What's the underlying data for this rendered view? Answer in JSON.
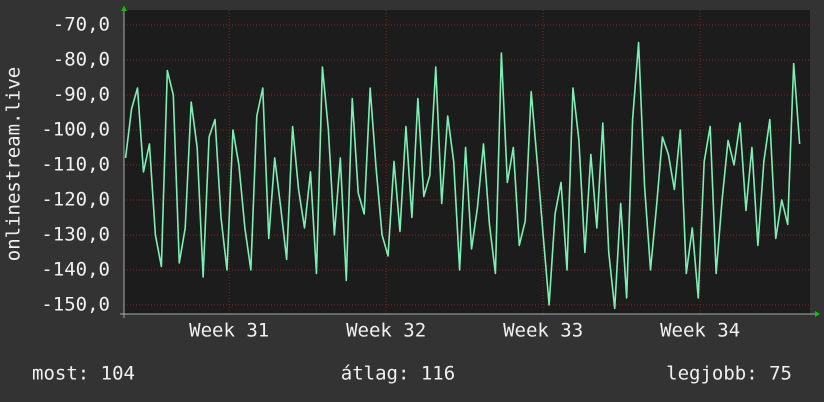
{
  "chart_data": {
    "type": "line",
    "y_label": "onlinestream.live",
    "x": [
      30.84,
      30.878,
      30.916,
      30.954,
      30.992,
      31.03,
      31.068,
      31.106,
      31.144,
      31.182,
      31.22,
      31.258,
      31.296,
      31.334,
      31.372,
      31.41,
      31.448,
      31.486,
      31.524,
      31.562,
      31.6,
      31.638,
      31.676,
      31.714,
      31.752,
      31.79,
      31.828,
      31.866,
      31.904,
      31.942,
      31.98,
      32.018,
      32.056,
      32.094,
      32.132,
      32.17,
      32.208,
      32.246,
      32.284,
      32.322,
      32.36,
      32.398,
      32.436,
      32.474,
      32.512,
      32.55,
      32.588,
      32.626,
      32.664,
      32.702,
      32.74,
      32.778,
      32.816,
      32.854,
      32.892,
      32.93,
      32.968,
      33.006,
      33.044,
      33.082,
      33.12,
      33.158,
      33.196,
      33.234,
      33.272,
      33.31,
      33.348,
      33.386,
      33.424,
      33.462,
      33.5,
      33.538,
      33.576,
      33.614,
      33.652,
      33.69,
      33.728,
      33.766,
      33.804,
      33.842,
      33.88,
      33.918,
      33.956,
      33.994,
      34.032,
      34.07,
      34.108,
      34.146,
      34.184,
      34.222,
      34.26,
      34.298,
      34.336,
      34.374,
      34.412,
      34.45,
      34.488,
      34.526,
      34.564,
      34.602,
      34.64,
      34.678,
      34.716,
      34.754,
      34.792,
      34.83,
      34.868,
      34.906,
      34.944,
      34.982,
      35.02,
      35.058,
      35.096,
      35.134
    ],
    "series": [
      {
        "name": "onlinestream.live",
        "color": "#7cf0b4",
        "values": [
          -108,
          -94,
          -88,
          -112,
          -104,
          -130,
          -139,
          -83,
          -90,
          -138,
          -128,
          -92,
          -105,
          -142,
          -102,
          -97,
          -125,
          -140,
          -100,
          -110,
          -128,
          -140,
          -96,
          -88,
          -131,
          -108,
          -122,
          -137,
          -99,
          -117,
          -128,
          -112,
          -141,
          -82,
          -100,
          -130,
          -108,
          -143,
          -91,
          -118,
          -124,
          -88,
          -111,
          -130,
          -136,
          -109,
          -129,
          -99,
          -125,
          -91,
          -119,
          -113,
          -82,
          -121,
          -96,
          -109,
          -140,
          -105,
          -134,
          -122,
          -104,
          -127,
          -141,
          -78,
          -115,
          -105,
          -133,
          -126,
          -89,
          -109,
          -130,
          -150,
          -124,
          -115,
          -140,
          -88,
          -103,
          -135,
          -107,
          -128,
          -98,
          -135,
          -151,
          -121,
          -148,
          -97,
          -75,
          -116,
          -140,
          -122,
          -102,
          -107,
          -117,
          -100,
          -141,
          -128,
          -148,
          -109,
          -99,
          -141,
          -120,
          -103,
          -110,
          -98,
          -123,
          -105,
          -133,
          -109,
          -97,
          -131,
          -120,
          -127,
          -81,
          -104
        ]
      }
    ],
    "xlim": [
      30.83,
      35.2
    ],
    "xticks": [
      {
        "value": 31.5,
        "label": "Week 31"
      },
      {
        "value": 32.5,
        "label": "Week 32"
      },
      {
        "value": 33.5,
        "label": "Week 33"
      },
      {
        "value": 34.5,
        "label": "Week 34"
      }
    ],
    "ylim": [
      -152.6,
      -65.7
    ],
    "yticks": [
      {
        "value": -70,
        "label": "-70,0"
      },
      {
        "value": -80,
        "label": "-80,0"
      },
      {
        "value": -90,
        "label": "-90,0"
      },
      {
        "value": -100,
        "label": "-100,0"
      },
      {
        "value": -110,
        "label": "-110,0"
      },
      {
        "value": -120,
        "label": "-120,0"
      },
      {
        "value": -130,
        "label": "-130,0"
      },
      {
        "value": -140,
        "label": "-140,0"
      },
      {
        "value": -150,
        "label": "-150,0"
      }
    ],
    "grid": true
  },
  "footer": [
    "most: 104",
    "átlag: 116",
    "legjobb: 75"
  ]
}
